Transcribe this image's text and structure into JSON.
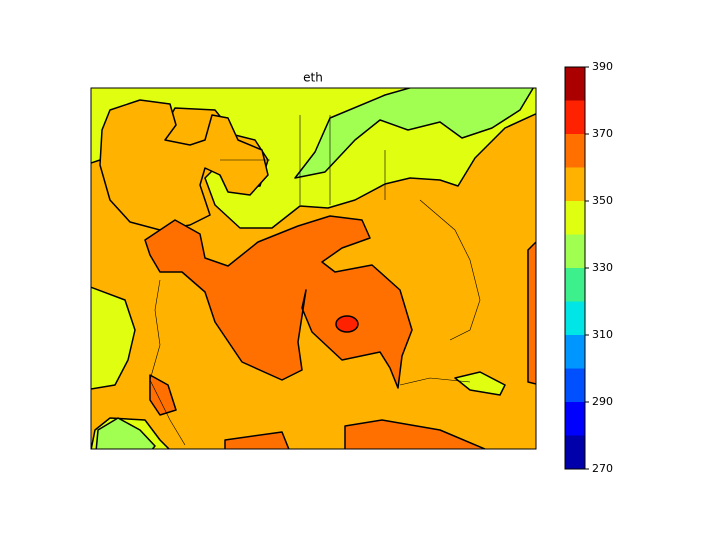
{
  "title": "eth",
  "colorbar": {
    "lim": [
      270,
      390
    ],
    "ticks": [
      270,
      290,
      310,
      330,
      350,
      370,
      390
    ],
    "levels": [
      270,
      280,
      290,
      300,
      310,
      320,
      330,
      340,
      350,
      360,
      370,
      380,
      390
    ],
    "colors": [
      "#0000aa",
      "#0000ff",
      "#0050ff",
      "#0096ff",
      "#00e6e6",
      "#3ef08c",
      "#a0ff50",
      "#e0ff10",
      "#ffb300",
      "#ff7000",
      "#ff2200",
      "#aa0000"
    ]
  }
}
